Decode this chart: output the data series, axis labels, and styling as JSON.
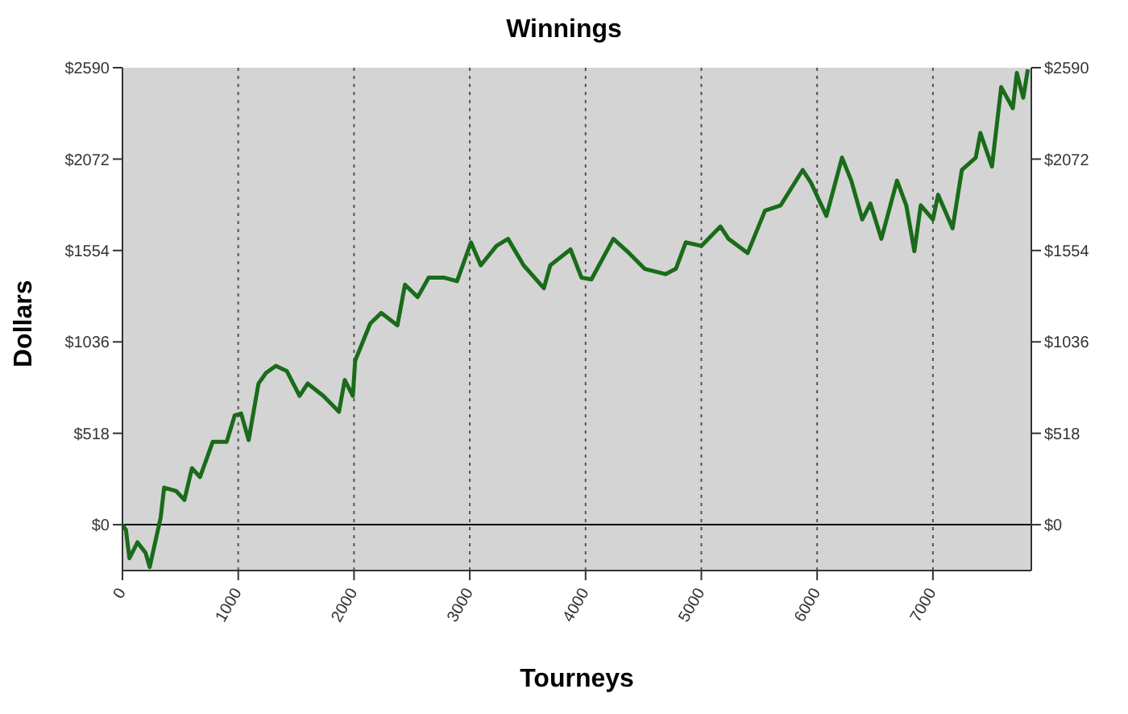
{
  "chart_data": {
    "type": "line",
    "title": "Winnings",
    "xlabel": "Tourneys",
    "ylabel": "Dollars",
    "xlim": [
      0,
      7850
    ],
    "xticks": [
      0,
      1000,
      2000,
      3000,
      4000,
      5000,
      6000,
      7000
    ],
    "ylim": [
      -260,
      2590
    ],
    "yticks": [
      {
        "value": 0,
        "label": "$0"
      },
      {
        "value": 518,
        "label": "$518"
      },
      {
        "value": 1036,
        "label": "$1036"
      },
      {
        "value": 1554,
        "label": "$1554"
      },
      {
        "value": 2072,
        "label": "$2072"
      },
      {
        "value": 2590,
        "label": "$2590"
      }
    ],
    "y2lim": [
      -260,
      2590
    ],
    "y2ticks": [
      {
        "value": 0,
        "label": "$0"
      },
      {
        "value": 518,
        "label": "$518"
      },
      {
        "value": 1036,
        "label": "$1036"
      },
      {
        "value": 1554,
        "label": "$1554"
      },
      {
        "value": 2072,
        "label": "$2072"
      },
      {
        "value": 2590,
        "label": "$2590"
      }
    ],
    "grid": true,
    "marker": "none",
    "line_style": "solid",
    "ref_lines": [
      {
        "axis": "y",
        "value": 0,
        "color": "#000000",
        "line_style": "solid"
      }
    ],
    "series": [
      {
        "color": "#1a6b1a",
        "x": [
          0,
          30,
          60,
          130,
          200,
          235,
          330,
          360,
          465,
          535,
          600,
          670,
          780,
          900,
          970,
          1025,
          1090,
          1175,
          1240,
          1325,
          1420,
          1530,
          1600,
          1735,
          1870,
          1920,
          1990,
          2010,
          2140,
          2235,
          2375,
          2440,
          2550,
          2645,
          2780,
          2890,
          3010,
          3095,
          3230,
          3330,
          3465,
          3640,
          3695,
          3870,
          3965,
          4050,
          4240,
          4375,
          4510,
          4690,
          4780,
          4865,
          5000,
          5165,
          5235,
          5400,
          5550,
          5685,
          5875,
          5945,
          6080,
          6215,
          6295,
          6390,
          6460,
          6555,
          6690,
          6770,
          6840,
          6895,
          7000,
          7045,
          7170,
          7250,
          7370,
          7410,
          7510,
          7590,
          7690,
          7725,
          7780,
          7820
        ],
        "values": [
          0,
          -30,
          -190,
          -100,
          -160,
          -240,
          40,
          210,
          190,
          140,
          320,
          270,
          470,
          470,
          620,
          630,
          480,
          800,
          860,
          900,
          870,
          730,
          800,
          730,
          640,
          820,
          730,
          930,
          1140,
          1200,
          1130,
          1360,
          1290,
          1400,
          1400,
          1380,
          1600,
          1470,
          1580,
          1620,
          1470,
          1340,
          1470,
          1560,
          1400,
          1390,
          1620,
          1540,
          1450,
          1420,
          1450,
          1600,
          1580,
          1690,
          1620,
          1540,
          1780,
          1810,
          2010,
          1940,
          1750,
          2080,
          1950,
          1730,
          1820,
          1620,
          1950,
          1810,
          1550,
          1810,
          1730,
          1870,
          1680,
          2010,
          2080,
          2220,
          2030,
          2480,
          2360,
          2560,
          2420,
          2580
        ]
      }
    ]
  }
}
